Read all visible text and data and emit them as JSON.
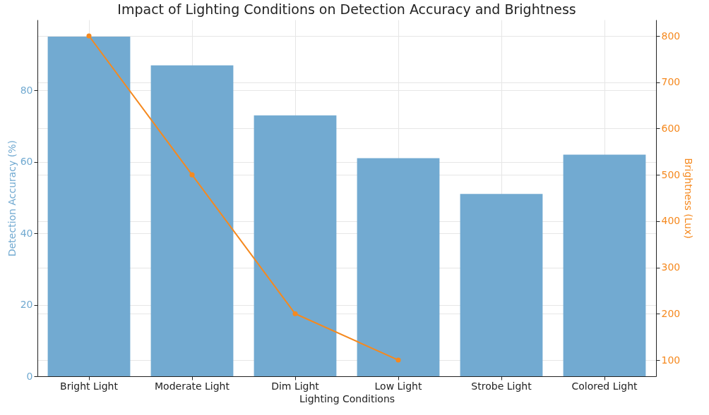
{
  "chart_data": {
    "type": "bar",
    "title": "Impact of Lighting Conditions on Detection Accuracy and Brightness",
    "xlabel": "Lighting Conditions",
    "ylabel": "Detection Accuracy (%)",
    "y2label": "Brightness (Lux)",
    "categories": [
      "Bright Light",
      "Moderate Light",
      "Dim Light",
      "Low Light",
      "Strobe Light",
      "Colored Light"
    ],
    "series": [
      {
        "color": "#72aad1",
        "values": [
          95,
          87,
          73,
          61,
          51,
          62
        ]
      },
      {
        "type": "line",
        "axis": "y2",
        "color": "#f5891f",
        "marker": "circle",
        "values": [
          800,
          500,
          200,
          100,
          null,
          null
        ]
      }
    ],
    "ylim": [
      0,
      99.75
    ],
    "yticks": [
      0,
      20,
      40,
      60,
      80
    ],
    "y2lim": [
      65,
      835
    ],
    "y2ticks": [
      100,
      200,
      300,
      400,
      500,
      600,
      700,
      800
    ],
    "grid": true
  }
}
